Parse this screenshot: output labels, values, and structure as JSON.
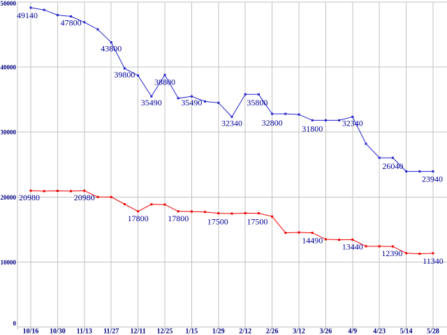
{
  "chart_data": {
    "type": "line",
    "title": "",
    "xlabel": "",
    "ylabel": "",
    "x_tick_labels": [
      "10/16",
      "10/30",
      "11/13",
      "11/27",
      "12/11",
      "12/25",
      "1/15",
      "1/29",
      "2/12",
      "2/26",
      "3/12",
      "3/26",
      "4/9",
      "4/23",
      "5/14",
      "5/28"
    ],
    "points_per_x_tick": 2,
    "y_tick_labels": [
      "0",
      "10000",
      "20000",
      "30000",
      "40000",
      "50000"
    ],
    "y_ticks": [
      0,
      10000,
      20000,
      30000,
      40000,
      50000
    ],
    "ylim": [
      0,
      50000
    ],
    "grid": true,
    "legend": "none",
    "background_color": "#ffffff",
    "grid_color": "#c0c0c0",
    "axis_label_color": "#000080",
    "annotation_color": "#000099",
    "series": [
      {
        "name": "upper-price-series",
        "color": "#2222cc",
        "values": [
          49140,
          48800,
          48000,
          47800,
          46900,
          45800,
          43800,
          39800,
          38700,
          35490,
          38800,
          35200,
          35490,
          34700,
          34500,
          32340,
          35800,
          35800,
          32800,
          32800,
          32700,
          31800,
          31800,
          31800,
          32340,
          28200,
          26040,
          26040,
          23940,
          23940,
          23940
        ],
        "point_labels": [
          {
            "index": 0,
            "text": "49140",
            "dx": -5,
            "dy": 15
          },
          {
            "index": 3,
            "text": "47800",
            "dx": 0,
            "dy": 13
          },
          {
            "index": 6,
            "text": "43800",
            "dx": 0,
            "dy": 13
          },
          {
            "index": 7,
            "text": "39800",
            "dx": 0,
            "dy": 13
          },
          {
            "index": 9,
            "text": "35490",
            "dx": 0,
            "dy": 13
          },
          {
            "index": 10,
            "text": "38800",
            "dx": 0,
            "dy": 14
          },
          {
            "index": 12,
            "text": "35490",
            "dx": 0,
            "dy": 13
          },
          {
            "index": 15,
            "text": "32340",
            "dx": 0,
            "dy": 13
          },
          {
            "index": 17,
            "text": "35800",
            "dx": -2,
            "dy": 16
          },
          {
            "index": 18,
            "text": "32800",
            "dx": 0,
            "dy": 17
          },
          {
            "index": 21,
            "text": "31800",
            "dx": 0,
            "dy": 16
          },
          {
            "index": 24,
            "text": "32340",
            "dx": 0,
            "dy": 13
          },
          {
            "index": 27,
            "text": "26040",
            "dx": 0,
            "dy": 16
          },
          {
            "index": 30,
            "text": "23940",
            "dx": -1,
            "dy": 15
          }
        ]
      },
      {
        "name": "lower-price-series",
        "color": "#ee0000",
        "values": [
          20980,
          20900,
          20940,
          20900,
          20980,
          20000,
          20000,
          18900,
          17800,
          18870,
          18840,
          17800,
          17770,
          17700,
          17500,
          17450,
          17520,
          17500,
          17000,
          14490,
          14550,
          14490,
          13490,
          13420,
          13440,
          12420,
          12420,
          12390,
          11350,
          11270,
          11340
        ],
        "point_labels": [
          {
            "index": 0,
            "text": "20980",
            "dx": -2,
            "dy": 14
          },
          {
            "index": 4,
            "text": "20980",
            "dx": 0,
            "dy": 14
          },
          {
            "index": 8,
            "text": "17800",
            "dx": 0,
            "dy": 14
          },
          {
            "index": 11,
            "text": "17800",
            "dx": 0,
            "dy": 14
          },
          {
            "index": 14,
            "text": "17500",
            "dx": -1,
            "dy": 16
          },
          {
            "index": 17,
            "text": "17500",
            "dx": -2,
            "dy": 16
          },
          {
            "index": 21,
            "text": "14490",
            "dx": 0,
            "dy": 15
          },
          {
            "index": 24,
            "text": "13440",
            "dx": 0,
            "dy": 14
          },
          {
            "index": 27,
            "text": "12390",
            "dx": -1,
            "dy": 14
          },
          {
            "index": 30,
            "text": "11340",
            "dx": 0,
            "dy": 15
          }
        ]
      }
    ]
  }
}
